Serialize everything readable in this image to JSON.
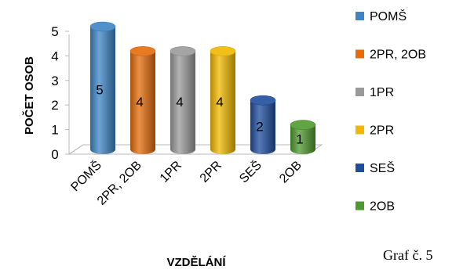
{
  "chart_data": {
    "type": "bar",
    "style": "3d-cylinder",
    "categories": [
      "POMŠ",
      "2PR, 2OB",
      "1PR",
      "2PR",
      "SEŠ",
      "2OB"
    ],
    "values": [
      5,
      4,
      4,
      4,
      2,
      1
    ],
    "colors": [
      "#3d85c6",
      "#e46c0a",
      "#9a9a9a",
      "#f1b800",
      "#1f4e9e",
      "#4f9a2e"
    ],
    "xlabel": "VZDĚLÁNÍ",
    "ylabel": "POČET OSOB",
    "ylim": [
      0,
      5
    ],
    "yticks": [
      "0",
      "1",
      "2",
      "3",
      "4",
      "5"
    ],
    "data_labels": [
      "5",
      "4",
      "4",
      "4",
      "2",
      "1"
    ],
    "legend": [
      "POMŠ",
      "2PR, 2OB",
      "1PR",
      "2PR",
      "SEŠ",
      "2OB"
    ],
    "legend_position": "right",
    "grid": false
  },
  "caption": "Graf č. 5"
}
